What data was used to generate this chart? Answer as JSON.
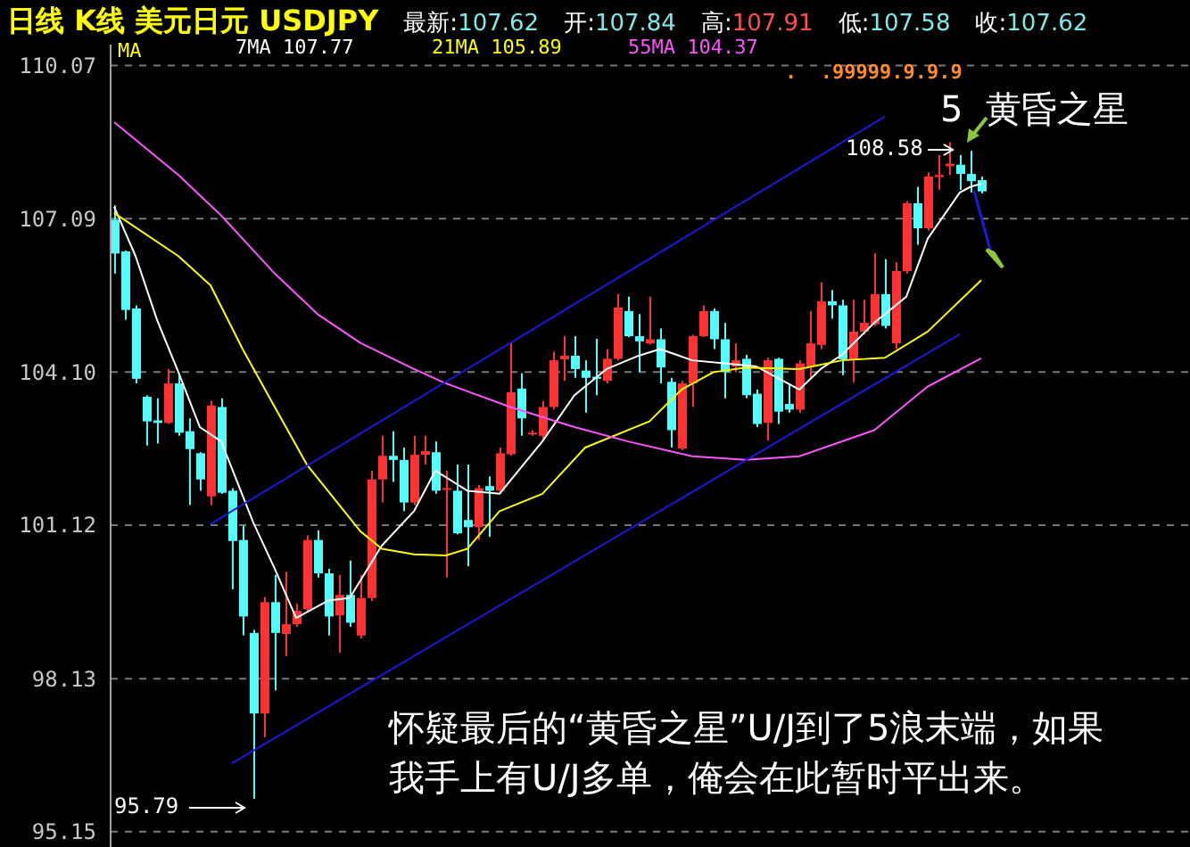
{
  "chart_data": {
    "type": "candlestick",
    "title": "日线 K线 美元日元 USDJPY",
    "categories": [
      null,
      null,
      null,
      null,
      null,
      null,
      null,
      null,
      null,
      null,
      null,
      null,
      null,
      null,
      null,
      null,
      null,
      null,
      null,
      null,
      null,
      null,
      null,
      null,
      null,
      null,
      null,
      null,
      null,
      null,
      null,
      null,
      null,
      null,
      null,
      null,
      null,
      null,
      null,
      null,
      null,
      null,
      null,
      null,
      null,
      null,
      null,
      null,
      null,
      null,
      null,
      null,
      null,
      null,
      null,
      null,
      null,
      null,
      null,
      null,
      null,
      null,
      null,
      null,
      null,
      null,
      null,
      null,
      null,
      null,
      null,
      null,
      null,
      null,
      null,
      null,
      null,
      null,
      null,
      null,
      null,
      null
    ],
    "ohlc": [
      [
        107.07,
        107.35,
        106.02,
        106.41
      ],
      [
        106.45,
        106.47,
        105.12,
        105.31
      ],
      [
        105.34,
        105.4,
        103.88,
        103.97
      ],
      [
        103.62,
        103.65,
        102.67,
        103.14
      ],
      [
        103.16,
        103.59,
        102.71,
        103.11
      ],
      [
        103.11,
        104.16,
        103.09,
        103.88
      ],
      [
        103.88,
        104.04,
        102.86,
        102.92
      ],
      [
        102.95,
        103.2,
        101.51,
        102.6
      ],
      [
        102.52,
        102.54,
        101.79,
        102.01
      ],
      [
        101.68,
        103.54,
        101.51,
        103.45
      ],
      [
        103.42,
        103.59,
        101.73,
        101.75
      ],
      [
        101.79,
        101.84,
        99.87,
        100.81
      ],
      [
        100.83,
        101.11,
        98.97,
        99.34
      ],
      [
        99.02,
        99.08,
        95.79,
        97.45
      ],
      [
        97.45,
        99.72,
        96.99,
        99.62
      ],
      [
        99.62,
        100.15,
        97.9,
        99.02
      ],
      [
        99.0,
        100.21,
        98.57,
        99.19
      ],
      [
        99.19,
        99.59,
        99.14,
        99.45
      ],
      [
        99.48,
        100.92,
        99.42,
        100.83
      ],
      [
        100.83,
        101.02,
        100.1,
        100.18
      ],
      [
        100.18,
        100.27,
        98.97,
        99.34
      ],
      [
        99.36,
        100.15,
        98.63,
        99.76
      ],
      [
        99.76,
        100.43,
        99.14,
        99.22
      ],
      [
        98.97,
        100.15,
        98.91,
        99.7
      ],
      [
        99.7,
        102.18,
        99.64,
        102.01
      ],
      [
        102.01,
        102.86,
        101.56,
        102.47
      ],
      [
        102.47,
        102.95,
        101.96,
        102.39
      ],
      [
        102.39,
        102.63,
        101.39,
        101.56
      ],
      [
        101.56,
        102.86,
        101.51,
        102.49
      ],
      [
        102.49,
        102.86,
        102.3,
        102.56
      ],
      [
        102.54,
        102.75,
        101.73,
        101.79
      ],
      [
        101.82,
        102.18,
        100.1,
        101.84
      ],
      [
        101.79,
        102.3,
        100.94,
        100.96
      ],
      [
        101.22,
        102.3,
        100.32,
        101.08
      ],
      [
        101.08,
        101.9,
        100.83,
        101.84
      ],
      [
        101.88,
        102.07,
        100.89,
        101.79
      ],
      [
        101.79,
        102.63,
        101.73,
        102.52
      ],
      [
        102.5,
        104.66,
        102.47,
        103.71
      ],
      [
        103.78,
        104.08,
        102.86,
        103.2
      ],
      [
        102.89,
        102.97,
        102.86,
        102.92
      ],
      [
        102.86,
        103.54,
        102.8,
        103.42
      ],
      [
        103.42,
        104.5,
        103.37,
        104.33
      ],
      [
        104.35,
        104.8,
        103.93,
        104.42
      ],
      [
        104.42,
        104.8,
        103.99,
        104.16
      ],
      [
        104.13,
        104.33,
        103.31,
        103.99
      ],
      [
        104.01,
        104.75,
        103.65,
        103.97
      ],
      [
        103.93,
        104.55,
        103.88,
        104.36
      ],
      [
        104.36,
        105.62,
        104.33,
        105.36
      ],
      [
        105.29,
        105.57,
        104.78,
        104.8
      ],
      [
        104.8,
        105.23,
        104.1,
        104.7
      ],
      [
        104.66,
        105.57,
        104.64,
        104.74
      ],
      [
        104.74,
        104.95,
        103.88,
        104.19
      ],
      [
        103.91,
        103.99,
        102.63,
        102.97
      ],
      [
        102.61,
        103.93,
        102.58,
        103.88
      ],
      [
        103.88,
        104.83,
        103.42,
        104.8
      ],
      [
        104.8,
        105.4,
        104.78,
        105.29
      ],
      [
        105.29,
        105.34,
        104.55,
        104.74
      ],
      [
        104.74,
        105.06,
        103.59,
        104.1
      ],
      [
        104.21,
        104.66,
        104.1,
        104.33
      ],
      [
        104.36,
        104.44,
        103.59,
        103.65
      ],
      [
        103.68,
        103.76,
        103.03,
        103.09
      ],
      [
        103.11,
        104.38,
        102.77,
        104.33
      ],
      [
        104.36,
        104.38,
        103.09,
        103.33
      ],
      [
        103.48,
        103.88,
        103.31,
        103.37
      ],
      [
        103.37,
        104.33,
        103.31,
        104.27
      ],
      [
        104.21,
        105.29,
        103.99,
        104.66
      ],
      [
        104.63,
        105.85,
        104.55,
        105.48
      ],
      [
        105.48,
        105.7,
        105.14,
        105.4
      ],
      [
        105.4,
        105.51,
        104.04,
        104.35
      ],
      [
        104.35,
        105.51,
        103.9,
        104.89
      ],
      [
        104.89,
        105.51,
        104.83,
        105.06
      ],
      [
        105.03,
        106.41,
        105.0,
        105.62
      ],
      [
        105.62,
        106.3,
        104.95,
        105.0
      ],
      [
        104.66,
        106.24,
        104.55,
        106.07
      ],
      [
        106.07,
        107.43,
        106.02,
        107.39
      ],
      [
        107.39,
        107.71,
        106.58,
        106.9
      ],
      [
        106.9,
        107.99,
        106.86,
        107.91
      ],
      [
        107.9,
        108.33,
        107.65,
        107.94
      ],
      [
        108.11,
        108.58,
        107.94,
        108.16
      ],
      [
        108.14,
        108.33,
        107.65,
        107.96
      ],
      [
        107.96,
        108.41,
        107.6,
        107.82
      ],
      [
        107.84,
        107.91,
        107.58,
        107.62
      ]
    ],
    "colors": [
      "#54fcfc",
      "#54fcfc",
      "#54fcfc",
      "#54fcfc",
      "#54fcfc",
      "#ff3232",
      "#54fcfc",
      "#54fcfc",
      "#54fcfc",
      "#ff3232",
      "#54fcfc",
      "#54fcfc",
      "#54fcfc",
      "#54fcfc",
      "#ff3232",
      "#54fcfc",
      "#ff3232",
      "#ff3232",
      "#ff3232",
      "#54fcfc",
      "#54fcfc",
      "#ff3232",
      "#54fcfc",
      "#ff3232",
      "#ff3232",
      "#ff3232",
      "#54fcfc",
      "#54fcfc",
      "#ff3232",
      "#ff3232",
      "#54fcfc",
      "#ff3232",
      "#54fcfc",
      "#54fcfc",
      "#ff3232",
      "#54fcfc",
      "#ff3232",
      "#ff3232",
      "#54fcfc",
      "#ff3232",
      "#ff3232",
      "#ff3232",
      "#ff3232",
      "#54fcfc",
      "#54fcfc",
      "#54fcfc",
      "#ff3232",
      "#ff3232",
      "#54fcfc",
      "#54fcfc",
      "#ff3232",
      "#54fcfc",
      "#54fcfc",
      "#ff3232",
      "#ff3232",
      "#ff3232",
      "#54fcfc",
      "#54fcfc",
      "#ff3232",
      "#54fcfc",
      "#54fcfc",
      "#ff3232",
      "#54fcfc",
      "#54fcfc",
      "#ff3232",
      "#ff3232",
      "#ff3232",
      "#54fcfc",
      "#54fcfc",
      "#ff3232",
      "#ff3232",
      "#ff3232",
      "#54fcfc",
      "#ff3232",
      "#ff3232",
      "#54fcfc",
      "#ff3232",
      "#ff3232",
      "#ff3232",
      "#54fcfc",
      "#54fcfc",
      "#54fcfc"
    ],
    "series": [
      {
        "name": "7MA 107.77",
        "type": "line",
        "color": "#ffffff",
        "values": [
          107.32,
          null,
          106.36,
          null,
          105.12,
          null,
          104.1,
          null,
          103.03,
          null,
          102.75,
          null,
          null,
          101.17,
          null,
          100.27,
          null,
          99.31,
          null,
          null,
          99.65,
          null,
          99.7,
          null,
          null,
          100.72,
          null,
          null,
          101.39,
          null,
          102.18,
          null,
          null,
          101.79,
          null,
          null,
          101.73,
          null,
          null,
          null,
          102.75,
          null,
          null,
          103.65,
          null,
          null,
          104.16,
          null,
          null,
          104.42,
          null,
          104.55,
          null,
          null,
          104.33,
          null,
          null,
          104.27,
          null,
          null,
          104.21,
          null,
          null,
          null,
          103.76,
          null,
          104.16,
          null,
          104.44,
          null,
          null,
          105.06,
          null,
          null,
          105.57,
          null,
          106.7,
          null,
          null,
          107.6,
          107.71,
          107.77
        ]
      },
      {
        "name": "21MA 105.89",
        "type": "line",
        "color": "#ffff00",
        "values": [
          107.2,
          null,
          null,
          null,
          null,
          null,
          106.36,
          null,
          null,
          105.79,
          null,
          null,
          104.55,
          null,
          null,
          103.42,
          null,
          null,
          102.3,
          null,
          null,
          null,
          null,
          101,
          null,
          100.66,
          null,
          null,
          100.55,
          null,
          null,
          100.53,
          null,
          100.66,
          null,
          null,
          101.39,
          null,
          null,
          null,
          101.73,
          null,
          null,
          null,
          102.63,
          null,
          null,
          null,
          null,
          null,
          103.14,
          null,
          null,
          103.76,
          null,
          null,
          104.1,
          null,
          null,
          104.19,
          null,
          null,
          null,
          null,
          104.16,
          null,
          null,
          null,
          104.33,
          null,
          null,
          null,
          104.38,
          null,
          null,
          null,
          104.89,
          null,
          null,
          null,
          null,
          105.89
        ]
      },
      {
        "name": "55MA 104.37",
        "type": "line",
        "color": "#ff55ff",
        "values": [
          108.97,
          null,
          null,
          null,
          null,
          null,
          107.94,
          null,
          null,
          null,
          107.15,
          null,
          null,
          null,
          null,
          106.02,
          null,
          null,
          null,
          105.23,
          null,
          null,
          null,
          104.67,
          null,
          null,
          null,
          null,
          104.16,
          null,
          null,
          103.88,
          null,
          null,
          null,
          null,
          null,
          103.42,
          null,
          null,
          null,
          null,
          null,
          103.03,
          null,
          null,
          null,
          null,
          102.75,
          null,
          null,
          null,
          null,
          null,
          102.46,
          null,
          null,
          null,
          null,
          102.39,
          null,
          null,
          null,
          null,
          102.46,
          null,
          null,
          null,
          null,
          null,
          null,
          102.97,
          null,
          null,
          null,
          null,
          103.82,
          null,
          null,
          null,
          null,
          104.37
        ]
      },
      {
        "type": "line",
        "color": "#1a1adb",
        "values": [
          null,
          null,
          null,
          null,
          null,
          null,
          null,
          null,
          null,
          101.14,
          null,
          null,
          null,
          null,
          null,
          null,
          null,
          null,
          null,
          null,
          null,
          null,
          null,
          null,
          null,
          null,
          null,
          null,
          null,
          null,
          null,
          null,
          null,
          null,
          null,
          null,
          null,
          null,
          null,
          null,
          null,
          null,
          null,
          null,
          null,
          null,
          null,
          null,
          null,
          null,
          null,
          null,
          null,
          null,
          null,
          null,
          null,
          null,
          null,
          null,
          null,
          null,
          null,
          null,
          null,
          null,
          null,
          null,
          null,
          null,
          null,
          null,
          109.08,
          null,
          null,
          null,
          null,
          null,
          null,
          null,
          null,
          null
        ]
      },
      {
        "type": "line",
        "color": "#1a1adb",
        "values": [
          null,
          null,
          null,
          null,
          null,
          null,
          null,
          null,
          null,
          null,
          null,
          96.48,
          null,
          null,
          null,
          null,
          null,
          null,
          null,
          null,
          null,
          null,
          null,
          null,
          null,
          null,
          null,
          null,
          null,
          null,
          null,
          null,
          null,
          null,
          null,
          null,
          null,
          null,
          null,
          null,
          null,
          null,
          null,
          null,
          null,
          null,
          null,
          null,
          null,
          null,
          null,
          null,
          null,
          null,
          null,
          null,
          null,
          null,
          null,
          null,
          null,
          null,
          null,
          null,
          null,
          null,
          null,
          null,
          null,
          null,
          null,
          null,
          null,
          null,
          null,
          null,
          null,
          null,
          null,
          104.84,
          null,
          null
        ]
      }
    ],
    "ylim": [
      94.85,
      110.48
    ],
    "yticks": [
      {
        "value": 95.15,
        "label": "95.15"
      },
      {
        "value": 98.13,
        "label": "98.13"
      },
      {
        "value": 101.12,
        "label": "101.12"
      },
      {
        "value": 104.1,
        "label": "104.10"
      },
      {
        "value": 107.09,
        "label": "107.09"
      },
      {
        "value": 110.07,
        "label": "110.07"
      }
    ],
    "tick_labels": "y",
    "grid": "y",
    "legend": "top left",
    "annotations": [
      "最新:107.62",
      "开:107.84",
      "高:107.91",
      "低:107.58",
      "收:107.62",
      "MA",
      ".  .99999.9.9.9",
      "5  黄昏之星",
      "108.58",
      "95.79",
      "怀疑最后的“黄昏之星”U/J到了5浪末端，如果",
      "我手上有U/J多单，俺会在此暂时平出来。"
    ]
  }
}
